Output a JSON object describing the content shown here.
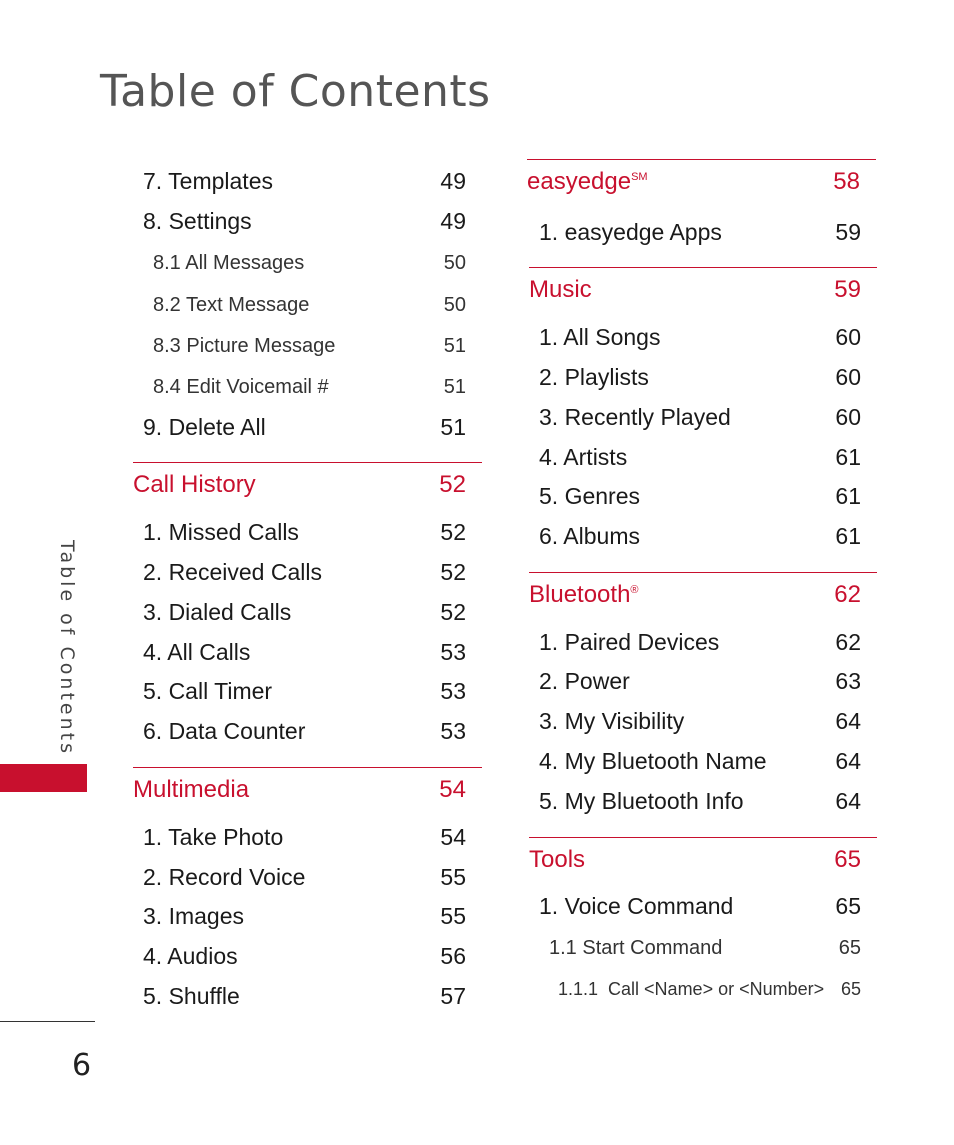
{
  "page": {
    "title": "Table of Contents",
    "side_label": "Table of Contents",
    "page_number": "6",
    "accent_color": "#c8102e"
  },
  "left_column": {
    "items": [
      {
        "label": "7. Templates",
        "page": "49"
      },
      {
        "label": "8. Settings",
        "page": "49"
      },
      {
        "label": "8.1 All Messages",
        "page": "50"
      },
      {
        "label": "8.2 Text Message",
        "page": "50"
      },
      {
        "label": "8.3 Picture Message",
        "page": "51"
      },
      {
        "label": "8.4 Edit Voicemail #",
        "page": "51"
      },
      {
        "label": "9. Delete All",
        "page": "51"
      }
    ],
    "call_history": {
      "title": "Call History",
      "page": "52",
      "items": [
        {
          "label": "1. Missed Calls",
          "page": "52"
        },
        {
          "label": "2. Received Calls",
          "page": "52"
        },
        {
          "label": "3. Dialed Calls",
          "page": "52"
        },
        {
          "label": "4. All Calls",
          "page": "53"
        },
        {
          "label": "5. Call Timer",
          "page": "53"
        },
        {
          "label": "6. Data Counter",
          "page": "53"
        }
      ]
    },
    "multimedia": {
      "title": "Multimedia",
      "page": "54",
      "items": [
        {
          "label": "1. Take Photo",
          "page": "54"
        },
        {
          "label": "2. Record Voice",
          "page": "55"
        },
        {
          "label": "3. Images",
          "page": "55"
        },
        {
          "label": "4. Audios",
          "page": "56"
        },
        {
          "label": "5. Shuffle",
          "page": "57"
        }
      ]
    }
  },
  "right_column": {
    "easyedge": {
      "title": "easyedge",
      "mark": "SM",
      "page": "58",
      "items": [
        {
          "label": "1. easyedge Apps",
          "page": "59"
        }
      ]
    },
    "music": {
      "title": "Music",
      "page": "59",
      "items": [
        {
          "label": "1. All Songs",
          "page": "60"
        },
        {
          "label": "2. Playlists",
          "page": "60"
        },
        {
          "label": "3. Recently Played",
          "page": "60"
        },
        {
          "label": "4. Artists",
          "page": "61"
        },
        {
          "label": "5. Genres",
          "page": "61"
        },
        {
          "label": "6. Albums",
          "page": "61"
        }
      ]
    },
    "bluetooth": {
      "title": "Bluetooth",
      "mark": "®",
      "page": "62",
      "items": [
        {
          "label": "1. Paired Devices",
          "page": "62"
        },
        {
          "label": "2. Power",
          "page": "63"
        },
        {
          "label": "3. My Visibility",
          "page": "64"
        },
        {
          "label": "4. My Bluetooth Name",
          "page": "64"
        },
        {
          "label": "5. My Bluetooth Info",
          "page": "64"
        }
      ]
    },
    "tools": {
      "title": "Tools",
      "page": "65",
      "items": [
        {
          "label": "1. Voice Command",
          "page": "65"
        },
        {
          "label": "1.1 Start Command",
          "page": "65"
        },
        {
          "label": "1.1.1  Call <Name> or <Number>",
          "page": "65"
        }
      ]
    }
  }
}
